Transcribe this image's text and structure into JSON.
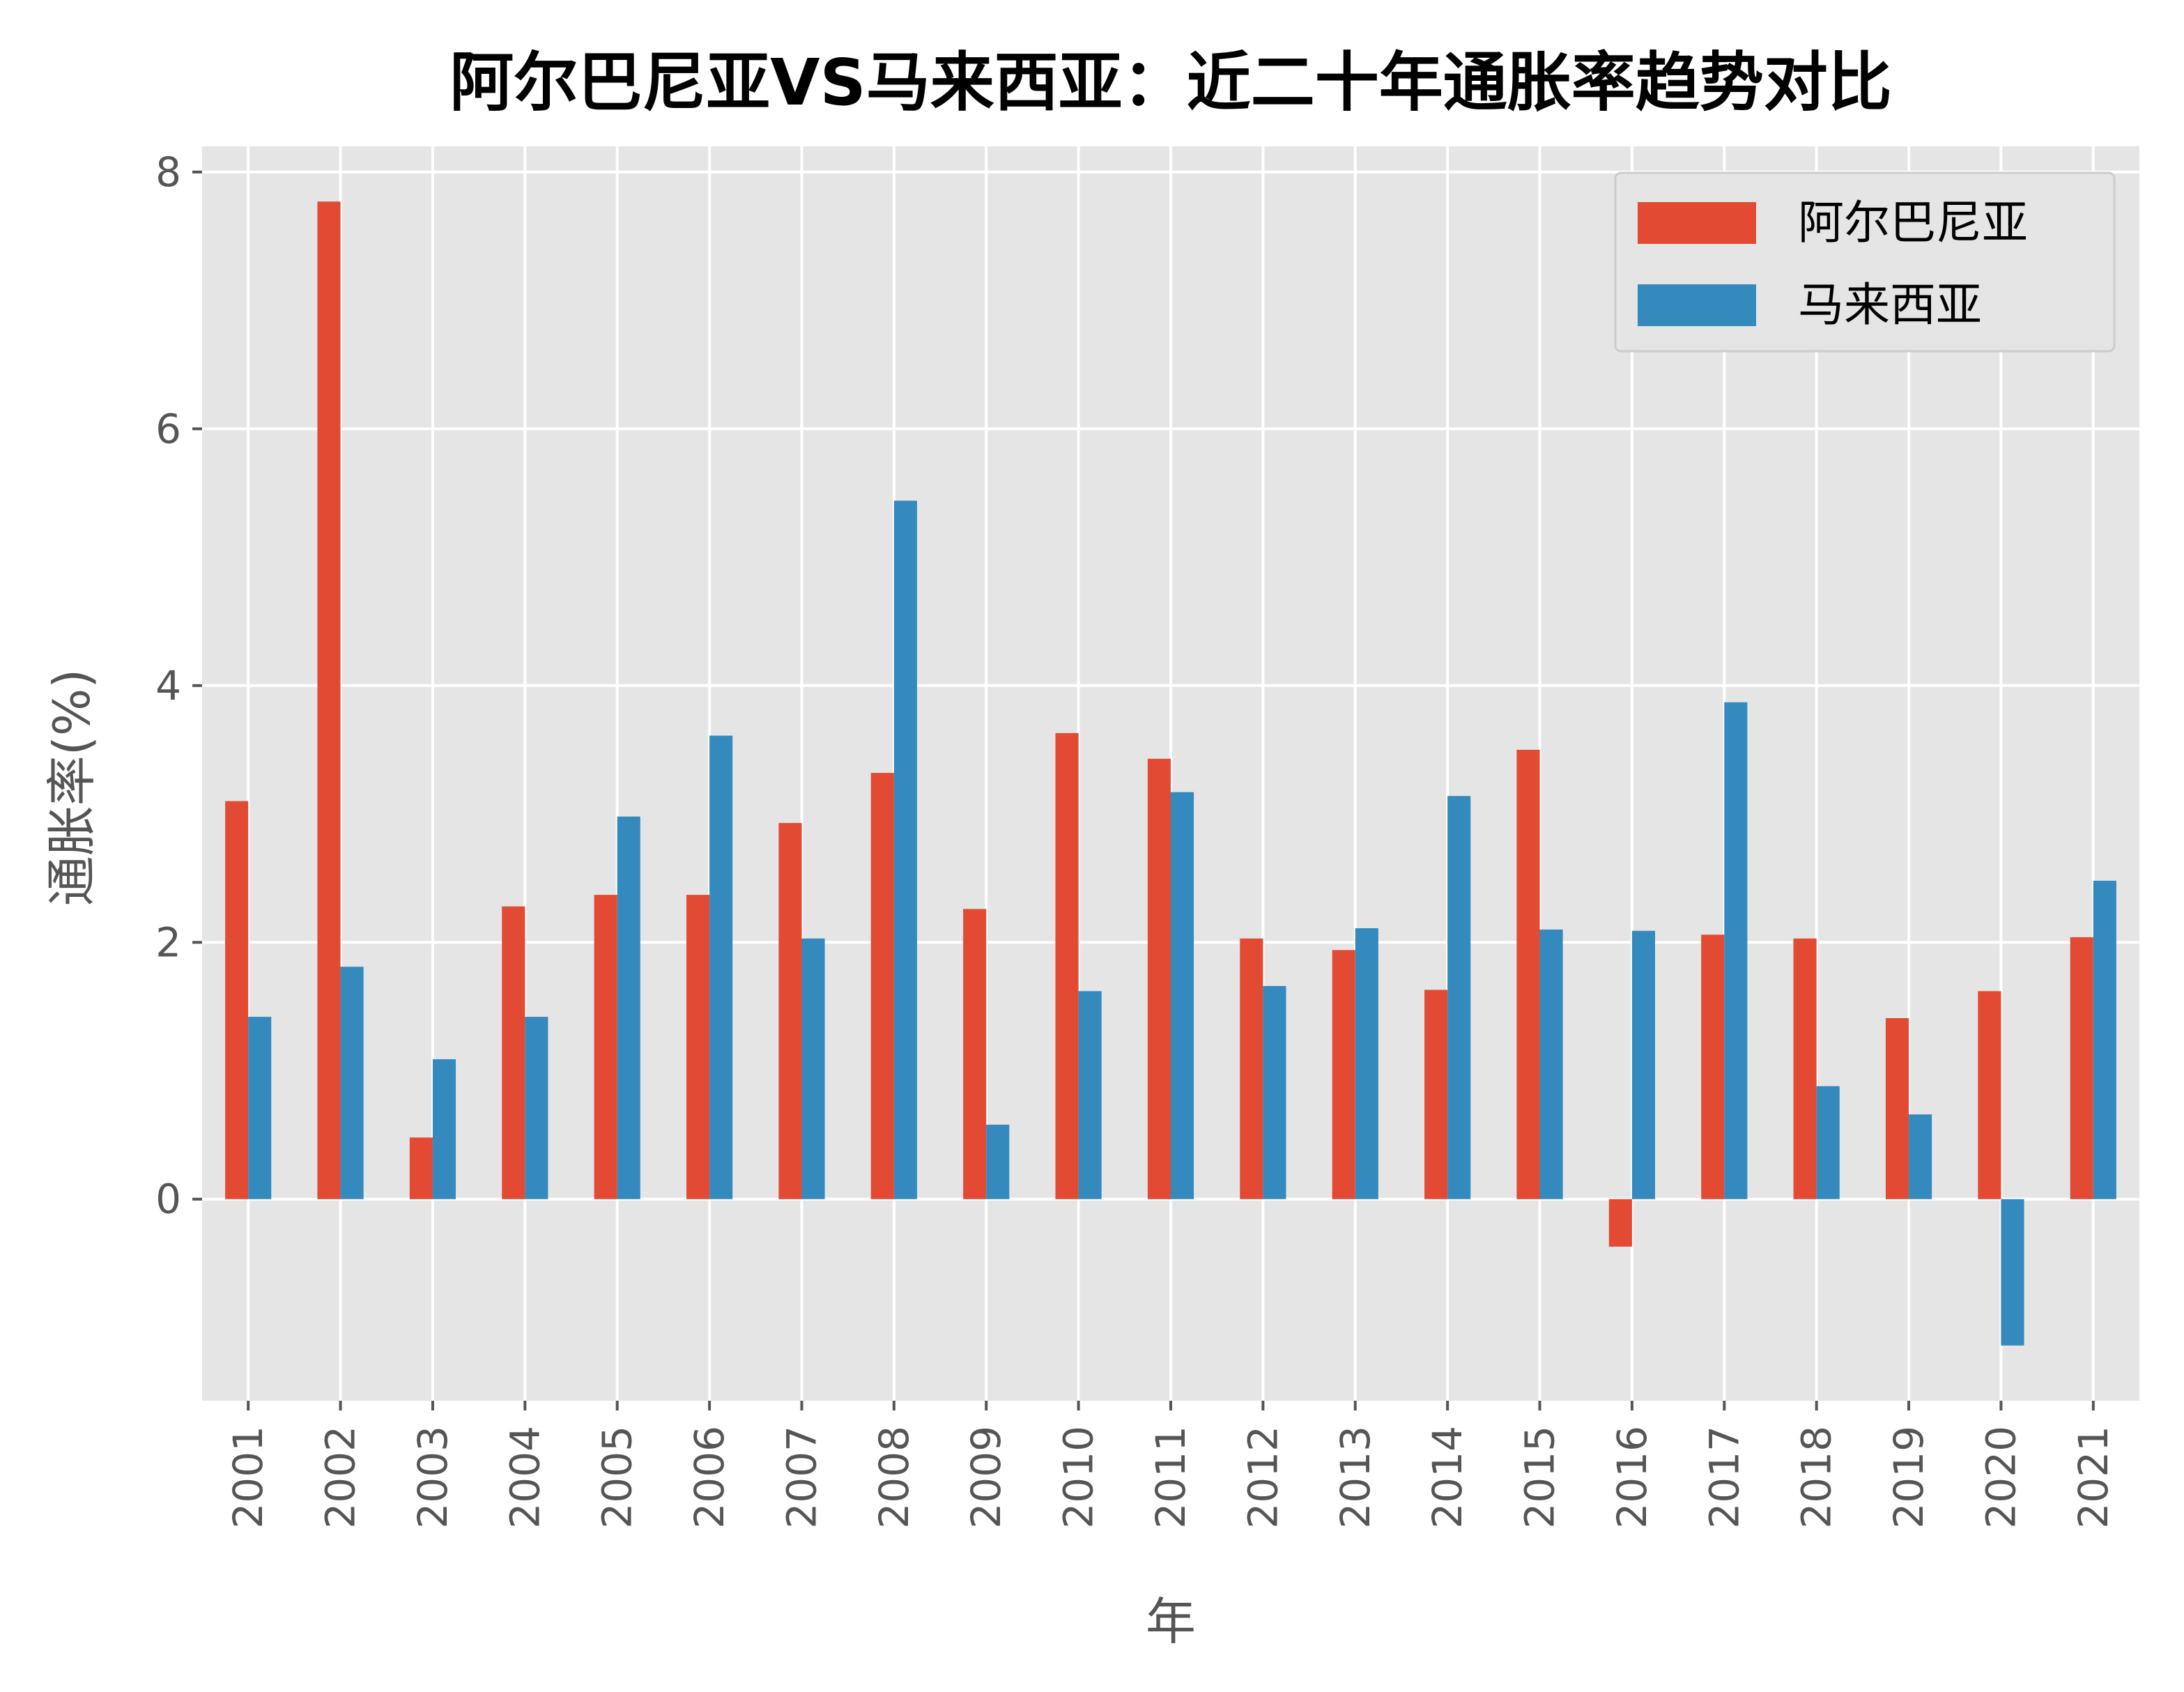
{
  "chart_data": {
    "type": "bar",
    "title": "阿尔巴尼亚VS马来西亚：近二十年通胀率趋势对比",
    "xlabel": "年",
    "ylabel": "通胀率(%)",
    "categories": [
      "2001",
      "2002",
      "2003",
      "2004",
      "2005",
      "2006",
      "2007",
      "2008",
      "2009",
      "2010",
      "2011",
      "2012",
      "2013",
      "2014",
      "2015",
      "2016",
      "2017",
      "2018",
      "2019",
      "2020",
      "2021"
    ],
    "series": [
      {
        "name": "阿尔巴尼亚",
        "color": "#E24A33",
        "values": [
          3.1,
          7.77,
          0.48,
          2.28,
          2.37,
          2.37,
          2.93,
          3.32,
          2.26,
          3.63,
          3.43,
          2.03,
          1.94,
          1.63,
          3.5,
          -0.37,
          2.06,
          2.03,
          1.41,
          1.62,
          2.04
        ]
      },
      {
        "name": "马来西亚",
        "color": "#348ABD",
        "values": [
          1.42,
          1.81,
          1.09,
          1.42,
          2.98,
          3.61,
          2.03,
          5.44,
          0.58,
          1.62,
          3.17,
          1.66,
          2.11,
          3.14,
          2.1,
          2.09,
          3.87,
          0.88,
          0.66,
          -1.14,
          2.48
        ]
      }
    ],
    "ylim": [
      -1.57,
      8.2
    ],
    "yticks": [
      0,
      2,
      4,
      6,
      8
    ],
    "grid": true,
    "legend": "top-right",
    "background": "#E5E5E5",
    "grid_color": "#FFFFFF"
  }
}
